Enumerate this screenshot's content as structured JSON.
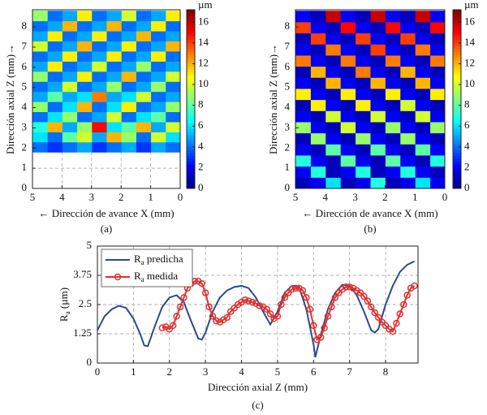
{
  "chart_data": [
    {
      "type": "heatmap",
      "caption": "(a)",
      "xlabel": "← Dirección de avance X (mm)",
      "ylabel": "Dirección axial Z (mm)→",
      "xlim": [
        5,
        0
      ],
      "ylim": [
        0,
        8.85
      ],
      "xticks": [
        5,
        4,
        3,
        2,
        1,
        0
      ],
      "yticks": [
        0,
        1,
        2,
        3,
        4,
        5,
        6,
        7,
        8
      ],
      "grid": true,
      "x_edges": [
        0,
        0.5,
        1,
        1.5,
        2,
        2.5,
        3,
        3.5,
        4,
        4.5,
        5
      ],
      "y_edges": [
        1.8,
        2.3,
        2.8,
        3.3,
        3.8,
        4.3,
        4.8,
        5.3,
        5.8,
        6.3,
        6.8,
        7.3,
        7.8,
        8.3,
        8.8
      ],
      "values": [
        [
          4,
          5,
          3,
          5,
          4,
          3,
          5,
          4,
          3,
          4
        ],
        [
          6,
          10,
          4,
          9,
          12,
          5,
          10,
          8,
          4,
          6
        ],
        [
          10,
          5,
          12,
          8,
          6,
          15,
          9,
          5,
          12,
          7
        ],
        [
          4,
          8,
          6,
          4,
          10,
          5,
          4,
          9,
          6,
          4
        ],
        [
          9,
          5,
          4,
          11,
          6,
          4,
          12,
          6,
          4,
          9
        ],
        [
          5,
          4,
          10,
          6,
          5,
          13,
          6,
          5,
          8,
          5
        ],
        [
          4,
          9,
          5,
          4,
          9,
          5,
          4,
          10,
          5,
          4
        ],
        [
          10,
          5,
          4,
          12,
          5,
          4,
          11,
          5,
          4,
          9
        ],
        [
          5,
          4,
          9,
          5,
          4,
          10,
          5,
          4,
          11,
          5
        ],
        [
          4,
          11,
          5,
          4,
          11,
          5,
          4,
          11,
          5,
          4
        ],
        [
          12,
          5,
          4,
          11,
          5,
          4,
          12,
          5,
          4,
          10
        ],
        [
          5,
          4,
          12,
          5,
          4,
          11,
          5,
          4,
          11,
          5
        ],
        [
          4,
          11,
          5,
          4,
          12,
          5,
          4,
          12,
          5,
          4
        ],
        [
          11,
          5,
          4,
          10,
          5,
          4,
          11,
          5,
          4,
          9
        ]
      ],
      "colormap": "jet",
      "clim": [
        0,
        17.2
      ],
      "cticks": [
        0,
        2,
        4,
        6,
        8,
        10,
        12,
        14,
        16
      ],
      "colorbar_label": "µm"
    },
    {
      "type": "heatmap",
      "caption": "(b)",
      "xlabel": "← Dirección de avance X (mm)",
      "ylabel": "Dirección axial Z (mm)→",
      "xlim": [
        5,
        0
      ],
      "ylim": [
        0,
        8.85
      ],
      "xticks": [
        5,
        4,
        3,
        2,
        1,
        0
      ],
      "yticks": [
        0,
        1,
        2,
        3,
        4,
        5,
        6,
        7,
        8
      ],
      "grid": false,
      "x_edges": [
        0,
        0.5,
        1,
        1.5,
        2,
        2.5,
        3,
        3.5,
        4,
        4.5,
        5
      ],
      "y_edges": [
        0,
        0.55,
        1.1,
        1.65,
        2.2,
        2.75,
        3.3,
        3.85,
        4.4,
        4.95,
        5.5,
        6.05,
        6.6,
        7.15,
        7.7,
        8.25,
        8.8
      ],
      "values": [
        [
          2,
          6,
          2,
          1,
          7,
          2,
          1,
          6,
          2,
          1
        ],
        [
          1,
          2,
          7,
          2,
          1,
          7,
          2,
          1,
          7,
          2
        ],
        [
          7,
          1,
          2,
          8,
          1,
          2,
          8,
          1,
          2,
          7
        ],
        [
          2,
          8,
          1,
          2,
          8,
          1,
          2,
          8,
          1,
          2
        ],
        [
          1,
          2,
          9,
          1,
          2,
          9,
          1,
          2,
          9,
          1
        ],
        [
          9,
          1,
          2,
          9,
          1,
          2,
          10,
          1,
          2,
          9
        ],
        [
          2,
          10,
          1,
          2,
          10,
          1,
          2,
          10,
          1,
          2
        ],
        [
          1,
          2,
          10,
          1,
          2,
          11,
          1,
          2,
          11,
          1
        ],
        [
          11,
          1,
          2,
          11,
          1,
          2,
          11,
          1,
          2,
          11
        ],
        [
          2,
          12,
          1,
          2,
          12,
          1,
          2,
          12,
          1,
          2
        ],
        [
          1,
          2,
          12,
          1,
          2,
          13,
          1,
          2,
          12,
          1
        ],
        [
          13,
          1,
          2,
          13,
          1,
          2,
          13,
          1,
          2,
          13
        ],
        [
          2,
          13,
          1,
          2,
          14,
          1,
          2,
          13,
          1,
          2
        ],
        [
          1,
          2,
          14,
          1,
          2,
          14,
          1,
          2,
          14,
          1
        ],
        [
          15,
          1,
          2,
          15,
          1,
          2,
          15,
          1,
          2,
          14
        ],
        [
          2,
          16,
          1,
          2,
          16,
          1,
          2,
          16,
          1,
          2
        ]
      ],
      "colormap": "jet",
      "clim": [
        0,
        17.2
      ],
      "cticks": [
        0,
        2,
        4,
        6,
        8,
        10,
        12,
        14,
        16
      ],
      "colorbar_label": "µm"
    },
    {
      "type": "line",
      "caption": "(c)",
      "xlabel": "Dirección axial Z (mm)",
      "ylabel": "Ra (µm)",
      "xlim": [
        0,
        8.9
      ],
      "ylim": [
        0,
        5
      ],
      "xticks": [
        0,
        1,
        2,
        3,
        4,
        5,
        6,
        7,
        8
      ],
      "yticks": [
        0,
        1.25,
        2.5,
        3.75,
        5
      ],
      "legend": "upper left",
      "series": [
        {
          "name": "Ra predicha",
          "color": "#2d4a8a",
          "marker": "none",
          "x": [
            0,
            0.2,
            0.4,
            0.6,
            0.8,
            1.0,
            1.2,
            1.3,
            1.4,
            1.6,
            1.8,
            2.0,
            2.2,
            2.4,
            2.6,
            2.8,
            2.9,
            3.0,
            3.2,
            3.4,
            3.6,
            3.8,
            4.0,
            4.2,
            4.4,
            4.6,
            4.8,
            5.0,
            5.2,
            5.4,
            5.6,
            5.8,
            6.0,
            6.05,
            6.2,
            6.4,
            6.6,
            6.8,
            7.0,
            7.2,
            7.4,
            7.6,
            7.7,
            7.8,
            8.0,
            8.2,
            8.4,
            8.6,
            8.8
          ],
          "values": [
            1.4,
            2.0,
            2.3,
            2.45,
            2.35,
            1.9,
            1.2,
            0.75,
            0.72,
            1.6,
            2.4,
            2.8,
            2.9,
            2.6,
            1.8,
            1.05,
            1.0,
            1.3,
            2.2,
            2.8,
            3.1,
            3.25,
            3.3,
            3.2,
            2.8,
            2.2,
            1.65,
            2.2,
            3.0,
            3.3,
            3.25,
            2.3,
            0.8,
            0.25,
            1.2,
            2.3,
            3.0,
            3.35,
            3.3,
            2.9,
            2.2,
            1.4,
            1.3,
            1.45,
            2.5,
            3.3,
            3.9,
            4.2,
            4.35
          ]
        },
        {
          "name": "Ra medida",
          "color": "#e03030",
          "marker": "circle",
          "x": [
            1.8,
            1.9,
            2.0,
            2.1,
            2.2,
            2.3,
            2.4,
            2.5,
            2.6,
            2.7,
            2.8,
            2.9,
            3.0,
            3.1,
            3.2,
            3.3,
            3.4,
            3.5,
            3.6,
            3.7,
            3.8,
            3.9,
            4.0,
            4.1,
            4.2,
            4.3,
            4.4,
            4.5,
            4.6,
            4.7,
            4.8,
            4.9,
            5.0,
            5.1,
            5.2,
            5.3,
            5.4,
            5.5,
            5.6,
            5.7,
            5.8,
            5.9,
            6.0,
            6.1,
            6.2,
            6.3,
            6.4,
            6.5,
            6.6,
            6.7,
            6.8,
            6.9,
            7.0,
            7.1,
            7.2,
            7.3,
            7.4,
            7.5,
            7.6,
            7.7,
            7.8,
            7.9,
            8.0,
            8.1,
            8.2,
            8.3,
            8.4,
            8.5,
            8.6,
            8.7,
            8.8
          ],
          "values": [
            1.5,
            1.55,
            1.45,
            1.6,
            2.0,
            2.4,
            2.8,
            3.2,
            3.4,
            3.5,
            3.5,
            3.4,
            3.0,
            2.4,
            2.0,
            1.8,
            1.75,
            1.85,
            1.95,
            2.2,
            2.35,
            2.5,
            2.6,
            2.7,
            2.65,
            2.6,
            2.55,
            2.45,
            2.4,
            2.3,
            2.1,
            1.9,
            2.0,
            2.5,
            2.8,
            3.0,
            3.15,
            3.2,
            3.2,
            3.1,
            2.8,
            2.3,
            1.6,
            1.0,
            1.1,
            1.5,
            2.0,
            2.4,
            2.8,
            3.0,
            3.15,
            3.25,
            3.25,
            3.2,
            3.1,
            3.0,
            2.85,
            2.65,
            2.4,
            2.15,
            1.95,
            1.75,
            1.6,
            1.45,
            1.35,
            1.7,
            2.1,
            2.5,
            2.9,
            3.2,
            3.3
          ]
        }
      ]
    }
  ]
}
